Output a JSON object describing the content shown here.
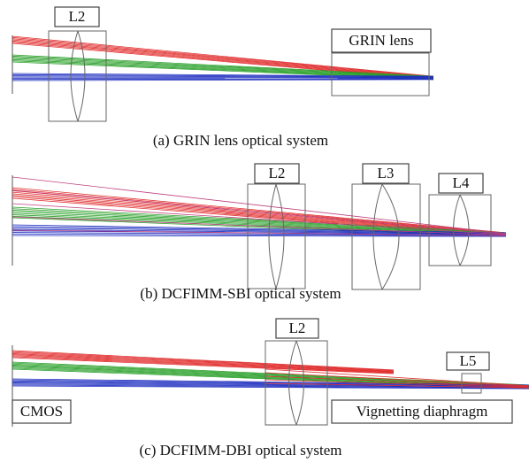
{
  "panels": [
    {
      "labels": [
        "L2",
        "GRIN lens"
      ],
      "caption": "(a) GRIN lens optical system"
    },
    {
      "labels": [
        "L2",
        "L3",
        "L4"
      ],
      "caption": "(b) DCFIMM-SBI optical system"
    },
    {
      "labels": [
        "L2",
        "L5",
        "CMOS",
        "Vignetting diaphragm"
      ],
      "caption": "(c) DCFIMM-DBI optical system"
    }
  ]
}
